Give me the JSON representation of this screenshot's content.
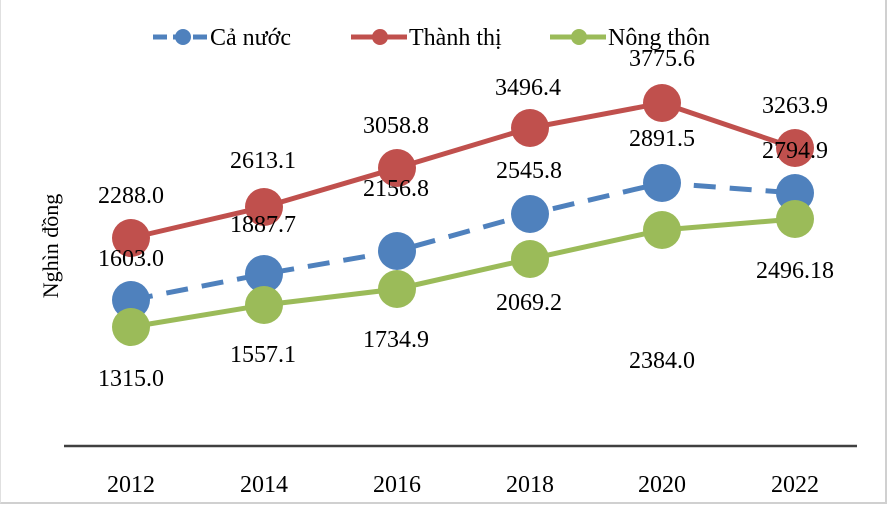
{
  "chart_data": {
    "type": "line",
    "title": "",
    "xlabel": "",
    "ylabel": "Nghìn đồng",
    "categories": [
      "2012",
      "2014",
      "2016",
      "2018",
      "2020",
      "2022"
    ],
    "series": [
      {
        "name": "Cả nước",
        "color": "#4F81BD",
        "style": "dashed",
        "values": [
          1603.0,
          1887.7,
          2156.8,
          2545.8,
          2891.5,
          2794.9
        ],
        "labels": [
          "1603.0",
          "1887.7",
          "2156.8",
          "2545.8",
          "2891.5",
          "2794.9"
        ]
      },
      {
        "name": "Thành thị",
        "color": "#C0504D",
        "style": "solid",
        "values": [
          2288.0,
          2613.1,
          3058.8,
          3496.4,
          3775.6,
          3263.9
        ],
        "labels": [
          "2288.0",
          "2613.1",
          "3058.8",
          "3496.4",
          "3775.6",
          "3263.9"
        ]
      },
      {
        "name": "Nông thôn",
        "color": "#9BBB59",
        "style": "solid",
        "values": [
          1315.0,
          1557.1,
          1734.9,
          2069.2,
          2384.0,
          2496.18
        ],
        "labels": [
          "1315.0",
          "1557.1",
          "1734.9",
          "2069.2",
          "2384.0",
          "2496.18"
        ]
      }
    ],
    "grid": false,
    "legend_position": "top",
    "y_axis_visible": false
  },
  "legend": {
    "items": [
      "Cả nước",
      "Thành thị",
      "Nông thôn"
    ]
  }
}
